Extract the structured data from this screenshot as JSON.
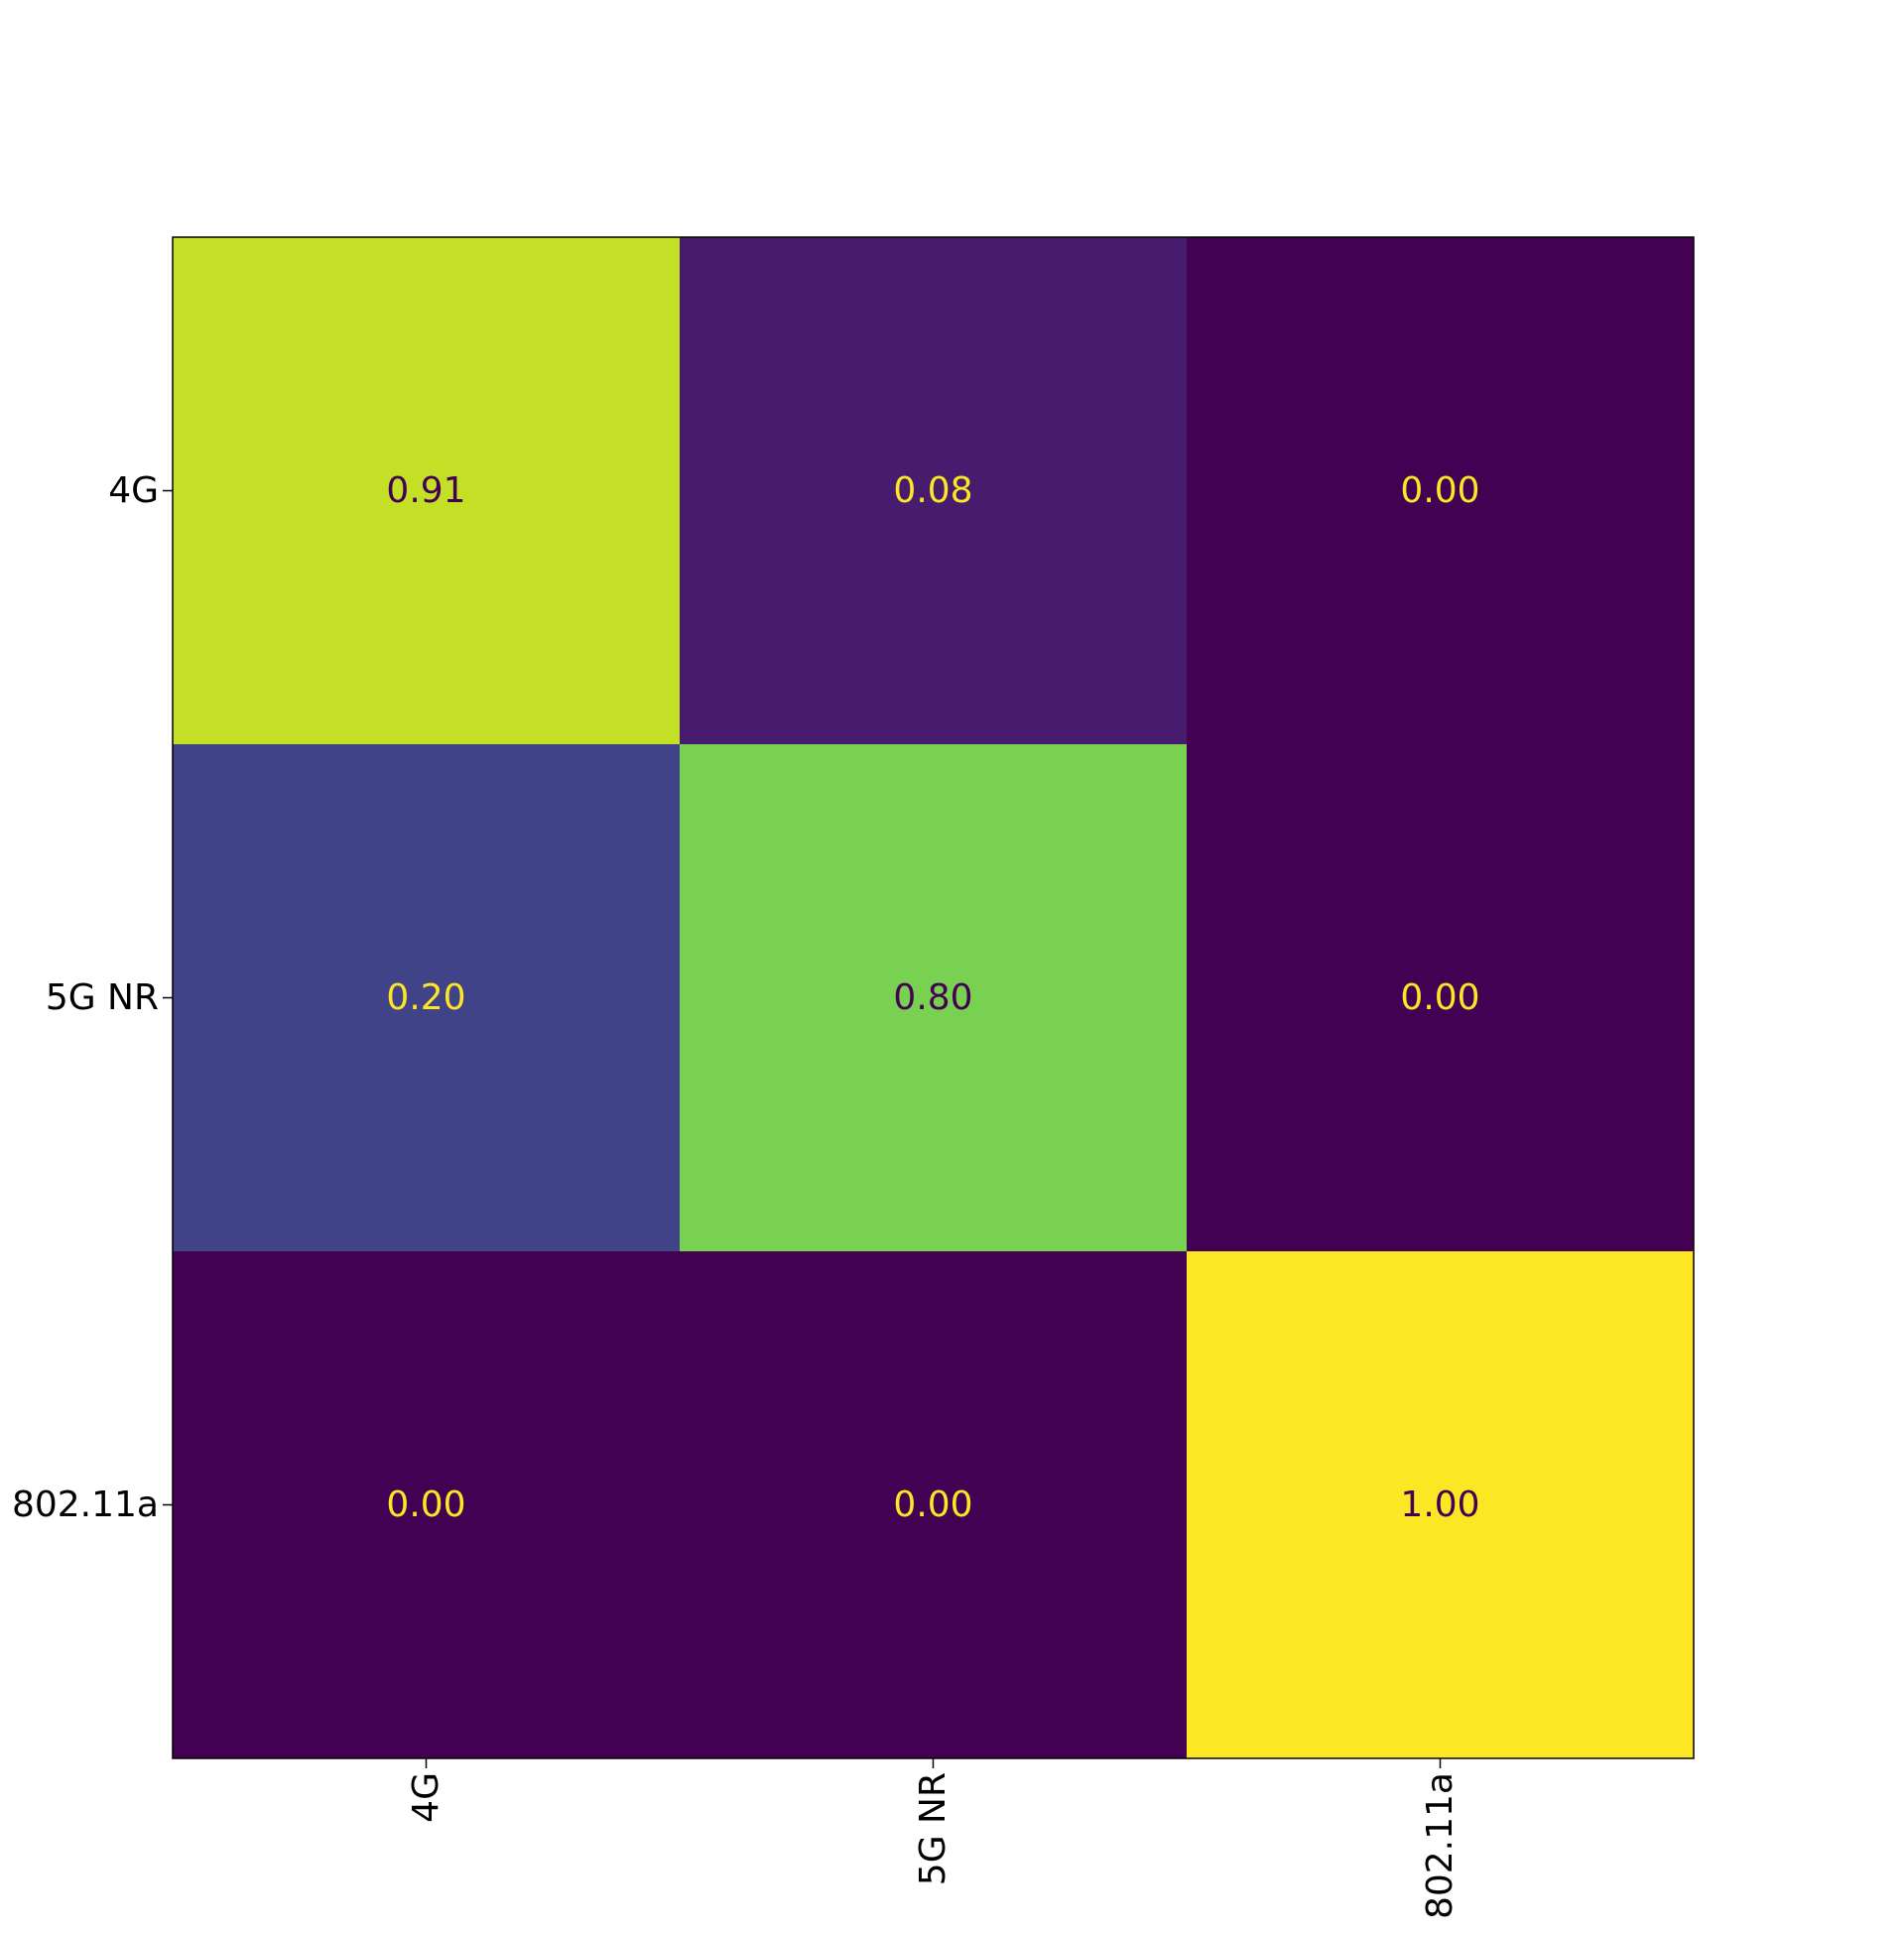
{
  "chart_data": {
    "type": "heatmap",
    "title": "",
    "xlabel": "",
    "ylabel": "",
    "x_categories": [
      "4G",
      "5G NR",
      "802.11a"
    ],
    "y_categories": [
      "4G",
      "5G NR",
      "802.11a"
    ],
    "values": [
      [
        0.91,
        0.08,
        0.0
      ],
      [
        0.2,
        0.8,
        0.0
      ],
      [
        0.0,
        0.0,
        1.0
      ]
    ],
    "value_format": "0.00",
    "value_range": [
      0.0,
      1.0
    ],
    "colormap": "viridis",
    "text_color_on_dark": "#fde725",
    "text_color_on_light": "#440154",
    "x_tick_rotation": "vertical",
    "grid": false,
    "colorbar": false
  }
}
